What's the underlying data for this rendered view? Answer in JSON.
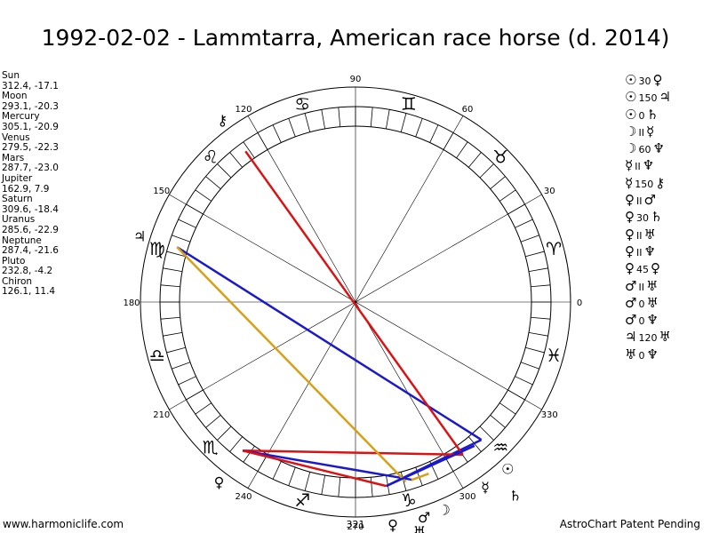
{
  "title": "1992-02-02 - Lammtarra, American race horse (d. 2014)",
  "positions": [
    {
      "name": "Sun",
      "coords": "312.4, -17.1"
    },
    {
      "name": "Moon",
      "coords": "293.1, -20.3"
    },
    {
      "name": "Mercury",
      "coords": "305.1, -20.9"
    },
    {
      "name": "Venus",
      "coords": "279.5, -22.3"
    },
    {
      "name": "Mars",
      "coords": "287.7, -23.0"
    },
    {
      "name": "Jupiter",
      "coords": "162.9, 7.9"
    },
    {
      "name": "Saturn",
      "coords": "309.6, -18.4"
    },
    {
      "name": "Uranus",
      "coords": "285.6, -22.9"
    },
    {
      "name": "Neptune",
      "coords": "287.4, -21.6"
    },
    {
      "name": "Pluto",
      "coords": "232.8, -4.2"
    },
    {
      "name": "Chiron",
      "coords": "126.1, 11.4"
    }
  ],
  "aspects": [
    {
      "p1": "☉",
      "angle": "30",
      "p2": "♀"
    },
    {
      "p1": "☉",
      "angle": "150",
      "p2": "♃"
    },
    {
      "p1": "☉",
      "angle": "0",
      "p2": "♄"
    },
    {
      "p1": "☽",
      "angle": "II",
      "p2": "☿"
    },
    {
      "p1": "☽",
      "angle": "60",
      "p2": "♆"
    },
    {
      "p1": "☿",
      "angle": "II",
      "p2": "♆"
    },
    {
      "p1": "☿",
      "angle": "150",
      "p2": "⚷"
    },
    {
      "p1": "♀",
      "angle": "II",
      "p2": "♂"
    },
    {
      "p1": "♀",
      "angle": "30",
      "p2": "♄"
    },
    {
      "p1": "♀",
      "angle": "II",
      "p2": "♅"
    },
    {
      "p1": "♀",
      "angle": "II",
      "p2": "♆"
    },
    {
      "p1": "♀",
      "angle": "45",
      "p2": "♀"
    },
    {
      "p1": "♂",
      "angle": "II",
      "p2": "♅"
    },
    {
      "p1": "♂",
      "angle": "0",
      "p2": "♅"
    },
    {
      "p1": "♂",
      "angle": "0",
      "p2": "♆"
    },
    {
      "p1": "♃",
      "angle": "120",
      "p2": "♅"
    },
    {
      "p1": "♅",
      "angle": "0",
      "p2": "♆"
    }
  ],
  "wheel": {
    "degree_labels": [
      {
        "deg": 0,
        "text": "0"
      },
      {
        "deg": 30,
        "text": "30"
      },
      {
        "deg": 60,
        "text": "60"
      },
      {
        "deg": 90,
        "text": "90"
      },
      {
        "deg": 120,
        "text": "120"
      },
      {
        "deg": 150,
        "text": "150"
      },
      {
        "deg": 180,
        "text": "180"
      },
      {
        "deg": 210,
        "text": "210"
      },
      {
        "deg": 240,
        "text": "240"
      },
      {
        "deg": 270,
        "text": "270"
      },
      {
        "deg": 300,
        "text": "300"
      },
      {
        "deg": 330,
        "text": "330"
      }
    ],
    "signs": [
      "♈",
      "♉",
      "♊",
      "♋",
      "♌",
      "♍",
      "♎",
      "♏",
      "♐",
      "♑",
      "♒",
      "♓"
    ],
    "planets": [
      {
        "glyph": "☉",
        "lon": 312.4
      },
      {
        "glyph": "☽",
        "lon": 293.1
      },
      {
        "glyph": "☿",
        "lon": 305.1
      },
      {
        "glyph": "♀",
        "lon": 279.5
      },
      {
        "glyph": "♂",
        "lon": 287.7
      },
      {
        "glyph": "♃",
        "lon": 162.9
      },
      {
        "glyph": "♄",
        "lon": 309.6
      },
      {
        "glyph": "♅",
        "lon": 285.6
      },
      {
        "glyph": "♆",
        "lon": 287.4
      },
      {
        "glyph": "♀",
        "lon": 232.8
      },
      {
        "glyph": "⚷",
        "lon": 126.1
      }
    ],
    "aspect_lines": [
      {
        "from": 312.4,
        "to": 162.9,
        "color": "#1a1acc"
      },
      {
        "from": 312.4,
        "to": 279.5,
        "color": "#1a1acc"
      },
      {
        "from": 305.1,
        "to": 126.1,
        "color": "#dd1111"
      },
      {
        "from": 305.1,
        "to": 232.8,
        "color": "#dd1111"
      },
      {
        "from": 232.8,
        "to": 287.7,
        "color": "#1a1acc"
      },
      {
        "from": 162.9,
        "to": 285.6,
        "color": "#d9a017"
      },
      {
        "from": 279.5,
        "to": 309.6,
        "color": "#1a1acc"
      },
      {
        "from": 293.1,
        "to": 287.4,
        "color": "#d9a017"
      },
      {
        "from": 279.5,
        "to": 232.8,
        "color": "#dd1111"
      }
    ],
    "colors": {
      "red": "#dd1111",
      "blue": "#1a1acc",
      "gold": "#d9a017"
    }
  },
  "footer": {
    "left": "www.harmoniclife.com",
    "center": "321",
    "right": "AstroChart Patent Pending"
  }
}
